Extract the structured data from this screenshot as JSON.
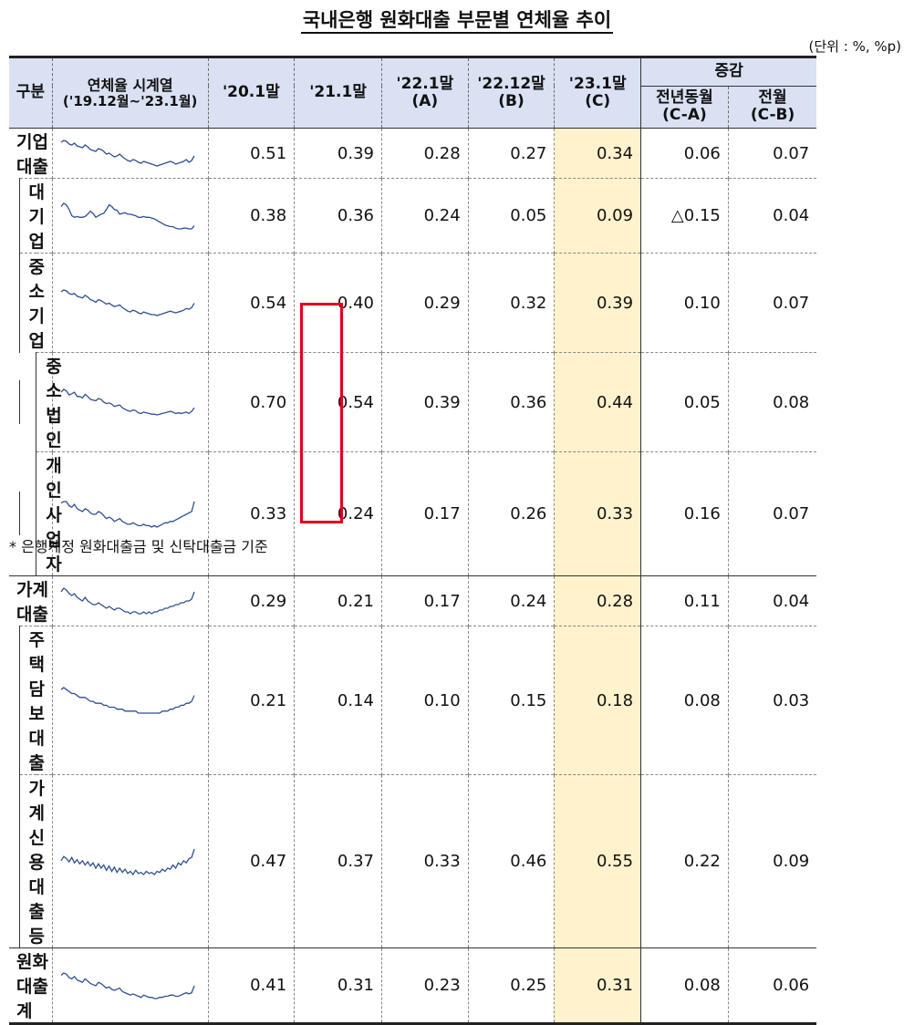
{
  "title": "국내은행 원화대출 부문별 연체율 추이",
  "unit": "(단위 : %, %p)",
  "header": {
    "category": "구분",
    "sparkline_l1": "연체율 시계열",
    "sparkline_l2": "('19.12월~'23.1월)",
    "col_2001": "'20.1말",
    "col_2101": "'21.1말",
    "col_2201_l1": "'22.1말",
    "col_2201_l2": "(A)",
    "col_2212_l1": "'22.12말",
    "col_2212_l2": "(B)",
    "col_2301_l1": "'23.1말",
    "col_2301_l2": "(C)",
    "change": "증감",
    "yoy_l1": "전년동월",
    "yoy_l2": "(C-A)",
    "mom_l1": "전월",
    "mom_l2": "(C-B)"
  },
  "colors": {
    "header_bg": "#d9e1f2",
    "highlight": "#fff2cc",
    "sparkline": "#2f4f8f",
    "redbox": "#e3001b"
  },
  "rows": [
    {
      "label": "기업대출",
      "level": 0,
      "v2001": "0.51",
      "v2101": "0.39",
      "v2201": "0.28",
      "v2212": "0.27",
      "v2301": "0.34",
      "yoy": "0.06",
      "mom": "0.07",
      "spark": [
        0.49,
        0.51,
        0.5,
        0.47,
        0.46,
        0.48,
        0.45,
        0.44,
        0.43,
        0.46,
        0.44,
        0.41,
        0.4,
        0.39,
        0.42,
        0.41,
        0.39,
        0.36,
        0.37,
        0.35,
        0.33,
        0.34,
        0.36,
        0.33,
        0.31,
        0.29,
        0.28,
        0.3,
        0.29,
        0.27,
        0.26,
        0.28,
        0.27,
        0.26,
        0.25,
        0.24,
        0.23,
        0.24,
        0.25,
        0.26,
        0.27,
        0.28,
        0.27,
        0.25,
        0.26,
        0.27,
        0.28,
        0.3,
        0.27,
        0.29,
        0.34
      ]
    },
    {
      "label": "대기업",
      "level": 1,
      "v2001": "0.38",
      "v2101": "0.36",
      "v2201": "0.24",
      "v2212": "0.05",
      "v2301": "0.09",
      "yoy": "△0.15",
      "mom": "0.04",
      "spark": [
        0.34,
        0.38,
        0.36,
        0.3,
        0.22,
        0.2,
        0.21,
        0.2,
        0.2,
        0.21,
        0.24,
        0.28,
        0.25,
        0.2,
        0.22,
        0.24,
        0.25,
        0.3,
        0.36,
        0.34,
        0.3,
        0.29,
        0.24,
        0.25,
        0.26,
        0.24,
        0.24,
        0.23,
        0.22,
        0.2,
        0.2,
        0.21,
        0.2,
        0.2,
        0.19,
        0.18,
        0.16,
        0.14,
        0.12,
        0.1,
        0.09,
        0.08,
        0.08,
        0.06,
        0.05,
        0.05,
        0.06,
        0.06,
        0.05,
        0.05,
        0.09
      ]
    },
    {
      "label": "중소기업",
      "level": 1,
      "v2001": "0.54",
      "v2101": "0.40",
      "v2201": "0.29",
      "v2212": "0.32",
      "v2301": "0.39",
      "yoy": "0.10",
      "mom": "0.07",
      "spark": [
        0.52,
        0.54,
        0.53,
        0.5,
        0.49,
        0.5,
        0.47,
        0.46,
        0.45,
        0.48,
        0.46,
        0.43,
        0.42,
        0.4,
        0.43,
        0.42,
        0.4,
        0.38,
        0.39,
        0.37,
        0.35,
        0.36,
        0.37,
        0.34,
        0.32,
        0.3,
        0.29,
        0.31,
        0.3,
        0.28,
        0.27,
        0.29,
        0.28,
        0.27,
        0.26,
        0.26,
        0.25,
        0.26,
        0.27,
        0.28,
        0.29,
        0.3,
        0.29,
        0.28,
        0.29,
        0.3,
        0.31,
        0.33,
        0.32,
        0.34,
        0.39
      ]
    },
    {
      "label": "중소법인",
      "level": 2,
      "v2001": "0.70",
      "v2101": "0.54",
      "v2201": "0.39",
      "v2212": "0.36",
      "v2301": "0.44",
      "yoy": "0.05",
      "mom": "0.08",
      "spark": [
        0.66,
        0.7,
        0.68,
        0.62,
        0.64,
        0.66,
        0.6,
        0.6,
        0.58,
        0.63,
        0.6,
        0.56,
        0.55,
        0.54,
        0.57,
        0.56,
        0.52,
        0.5,
        0.51,
        0.49,
        0.46,
        0.47,
        0.48,
        0.44,
        0.42,
        0.4,
        0.39,
        0.41,
        0.4,
        0.37,
        0.36,
        0.38,
        0.37,
        0.36,
        0.35,
        0.35,
        0.34,
        0.35,
        0.36,
        0.37,
        0.38,
        0.39,
        0.38,
        0.36,
        0.37,
        0.36,
        0.37,
        0.38,
        0.36,
        0.39,
        0.44
      ]
    },
    {
      "label": "개인사업자",
      "level": 2,
      "v2001": "0.33",
      "v2101": "0.24",
      "v2201": "0.17",
      "v2212": "0.26",
      "v2301": "0.33",
      "yoy": "0.16",
      "mom": "0.07",
      "spark": [
        0.32,
        0.33,
        0.33,
        0.3,
        0.29,
        0.31,
        0.28,
        0.27,
        0.26,
        0.28,
        0.27,
        0.25,
        0.24,
        0.24,
        0.26,
        0.25,
        0.23,
        0.21,
        0.22,
        0.21,
        0.19,
        0.2,
        0.21,
        0.19,
        0.18,
        0.17,
        0.17,
        0.18,
        0.17,
        0.16,
        0.16,
        0.17,
        0.16,
        0.16,
        0.15,
        0.16,
        0.15,
        0.16,
        0.17,
        0.18,
        0.18,
        0.19,
        0.19,
        0.2,
        0.21,
        0.22,
        0.23,
        0.24,
        0.25,
        0.26,
        0.33
      ]
    },
    {
      "label": "가계대출",
      "level": 0,
      "v2001": "0.29",
      "v2101": "0.21",
      "v2201": "0.17",
      "v2212": "0.24",
      "v2301": "0.28",
      "yoy": "0.11",
      "mom": "0.04",
      "spark": [
        0.28,
        0.3,
        0.29,
        0.27,
        0.26,
        0.27,
        0.25,
        0.24,
        0.23,
        0.25,
        0.23,
        0.22,
        0.21,
        0.21,
        0.22,
        0.21,
        0.2,
        0.19,
        0.2,
        0.19,
        0.18,
        0.19,
        0.19,
        0.18,
        0.17,
        0.17,
        0.16,
        0.17,
        0.17,
        0.16,
        0.16,
        0.17,
        0.16,
        0.17,
        0.16,
        0.17,
        0.17,
        0.18,
        0.18,
        0.19,
        0.19,
        0.2,
        0.2,
        0.21,
        0.21,
        0.22,
        0.22,
        0.23,
        0.23,
        0.24,
        0.28
      ]
    },
    {
      "label": "주택담보대출",
      "level": 1,
      "v2001": "0.21",
      "v2101": "0.14",
      "v2201": "0.10",
      "v2212": "0.15",
      "v2301": "0.18",
      "yoy": "0.08",
      "mom": "0.03",
      "spark": [
        0.21,
        0.22,
        0.21,
        0.2,
        0.19,
        0.19,
        0.18,
        0.17,
        0.17,
        0.17,
        0.16,
        0.15,
        0.15,
        0.14,
        0.14,
        0.14,
        0.13,
        0.13,
        0.12,
        0.12,
        0.12,
        0.11,
        0.11,
        0.11,
        0.1,
        0.1,
        0.1,
        0.1,
        0.1,
        0.09,
        0.09,
        0.09,
        0.09,
        0.09,
        0.09,
        0.09,
        0.09,
        0.09,
        0.1,
        0.1,
        0.1,
        0.11,
        0.11,
        0.12,
        0.12,
        0.13,
        0.13,
        0.14,
        0.14,
        0.15,
        0.18
      ]
    },
    {
      "label": "가계신용대출등",
      "level": 1,
      "v2001": "0.47",
      "v2101": "0.37",
      "v2201": "0.33",
      "v2212": "0.46",
      "v2301": "0.55",
      "yoy": "0.22",
      "mom": "0.09",
      "spark": [
        0.44,
        0.48,
        0.46,
        0.43,
        0.47,
        0.42,
        0.45,
        0.41,
        0.44,
        0.4,
        0.43,
        0.39,
        0.42,
        0.37,
        0.41,
        0.37,
        0.4,
        0.35,
        0.39,
        0.34,
        0.38,
        0.33,
        0.37,
        0.33,
        0.36,
        0.32,
        0.34,
        0.31,
        0.35,
        0.32,
        0.33,
        0.31,
        0.34,
        0.32,
        0.33,
        0.31,
        0.34,
        0.33,
        0.36,
        0.34,
        0.37,
        0.36,
        0.4,
        0.37,
        0.42,
        0.4,
        0.44,
        0.42,
        0.46,
        0.47,
        0.55
      ]
    },
    {
      "label": "원화대출계",
      "level": 0,
      "v2001": "0.41",
      "v2101": "0.31",
      "v2201": "0.23",
      "v2212": "0.25",
      "v2301": "0.31",
      "yoy": "0.08",
      "mom": "0.06",
      "spark": [
        0.4,
        0.42,
        0.41,
        0.38,
        0.37,
        0.39,
        0.36,
        0.35,
        0.34,
        0.37,
        0.35,
        0.33,
        0.32,
        0.31,
        0.34,
        0.33,
        0.31,
        0.29,
        0.3,
        0.28,
        0.27,
        0.28,
        0.29,
        0.26,
        0.25,
        0.24,
        0.23,
        0.24,
        0.23,
        0.22,
        0.21,
        0.23,
        0.22,
        0.21,
        0.21,
        0.2,
        0.2,
        0.21,
        0.21,
        0.22,
        0.22,
        0.23,
        0.23,
        0.22,
        0.22,
        0.23,
        0.24,
        0.25,
        0.24,
        0.25,
        0.31
      ]
    }
  ],
  "footnote": "* 은행계정 원화대출금 및 신탁대출금 기준"
}
